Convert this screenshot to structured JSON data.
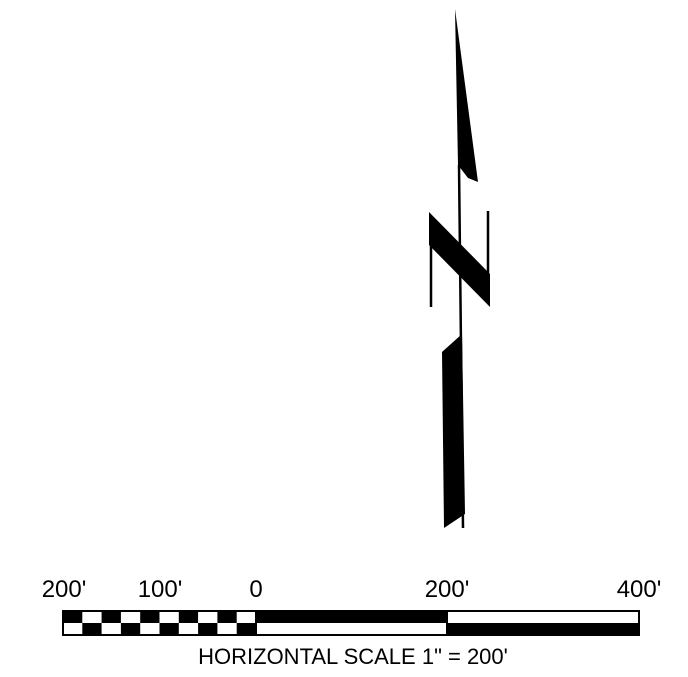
{
  "north_arrow": {
    "icon": "north-arrow-icon",
    "letter": "N",
    "color": "#000000"
  },
  "scale_bar": {
    "labels": [
      "200'",
      "100'",
      "0",
      "200'",
      "400'"
    ],
    "title": "HORIZONTAL SCALE 1\" = 200'",
    "colors": {
      "ink": "#000000",
      "paper": "#ffffff"
    }
  }
}
